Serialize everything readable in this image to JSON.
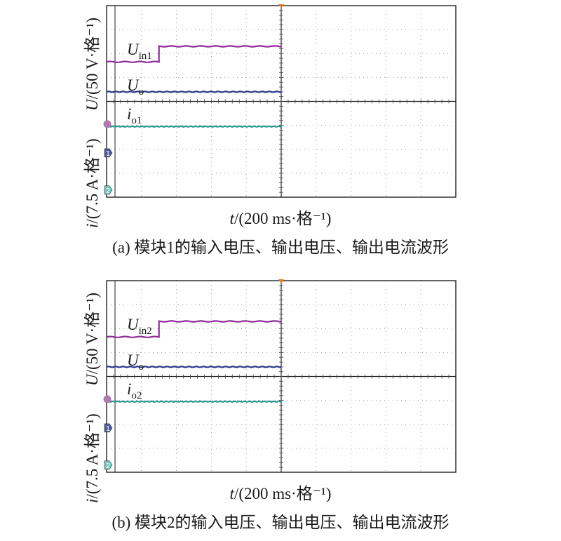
{
  "chart_data": [
    {
      "type": "line",
      "caption": "(a) 模块1的输入电压、输出电压、输出电流波形",
      "xlabel_var": "t",
      "xlabel_rest": "/(200 ms·格⁻¹)",
      "ylabel_voltage_var": "U",
      "ylabel_voltage_rest": "/(50 V·格⁻¹)",
      "ylabel_current_var": "i",
      "ylabel_current_rest": "/(7.5 A·格⁻¹)",
      "x": [
        0,
        1.5,
        1.5,
        5
      ],
      "x_divisions": 10,
      "y_divisions": 8,
      "grid": "dotted",
      "series": [
        {
          "name": "U",
          "sub": "in1",
          "color": "#8e2a9a",
          "x": [
            0,
            1.5,
            1.5,
            5
          ],
          "values": [
            5.65,
            5.65,
            6.3,
            6.3
          ],
          "unit": "div"
        },
        {
          "name": "U",
          "sub": "o",
          "color": "#2a3a8a",
          "x": [
            0,
            5
          ],
          "values": [
            4.4,
            4.4
          ],
          "unit": "div"
        },
        {
          "name": "i",
          "sub": "o1",
          "color": "#2a9a8e",
          "x": [
            0,
            5
          ],
          "values": [
            2.95,
            2.95
          ],
          "unit": "div"
        }
      ],
      "markers": [
        {
          "label": "",
          "color": "#b07ab0"
        },
        {
          "label": "1",
          "color": "#4a5a9a"
        },
        {
          "label": "2",
          "color": "#6fc7be"
        }
      ]
    },
    {
      "type": "line",
      "caption": "(b) 模块2的输入电压、输出电压、输出电流波形",
      "xlabel_var": "t",
      "xlabel_rest": "/(200 ms·格⁻¹)",
      "ylabel_voltage_var": "U",
      "ylabel_voltage_rest": "/(50 V·格⁻¹)",
      "ylabel_current_var": "i",
      "ylabel_current_rest": "/(7.5 A·格⁻¹)",
      "x_divisions": 10,
      "y_divisions": 8,
      "grid": "dotted",
      "series": [
        {
          "name": "U",
          "sub": "in2",
          "color": "#8e2a9a",
          "x": [
            0,
            1.5,
            1.5,
            5
          ],
          "values": [
            5.65,
            5.65,
            6.3,
            6.3
          ],
          "unit": "div"
        },
        {
          "name": "U",
          "sub": "o",
          "color": "#2a3a8a",
          "x": [
            0,
            5
          ],
          "values": [
            4.4,
            4.4
          ],
          "unit": "div"
        },
        {
          "name": "i",
          "sub": "o2",
          "color": "#2a9a8e",
          "x": [
            0,
            5
          ],
          "values": [
            2.95,
            2.95
          ],
          "unit": "div"
        }
      ],
      "markers": [
        {
          "label": "",
          "color": "#b07ab0"
        },
        {
          "label": "1",
          "color": "#4a5a9a"
        },
        {
          "label": "2",
          "color": "#6fc7be"
        }
      ]
    }
  ]
}
